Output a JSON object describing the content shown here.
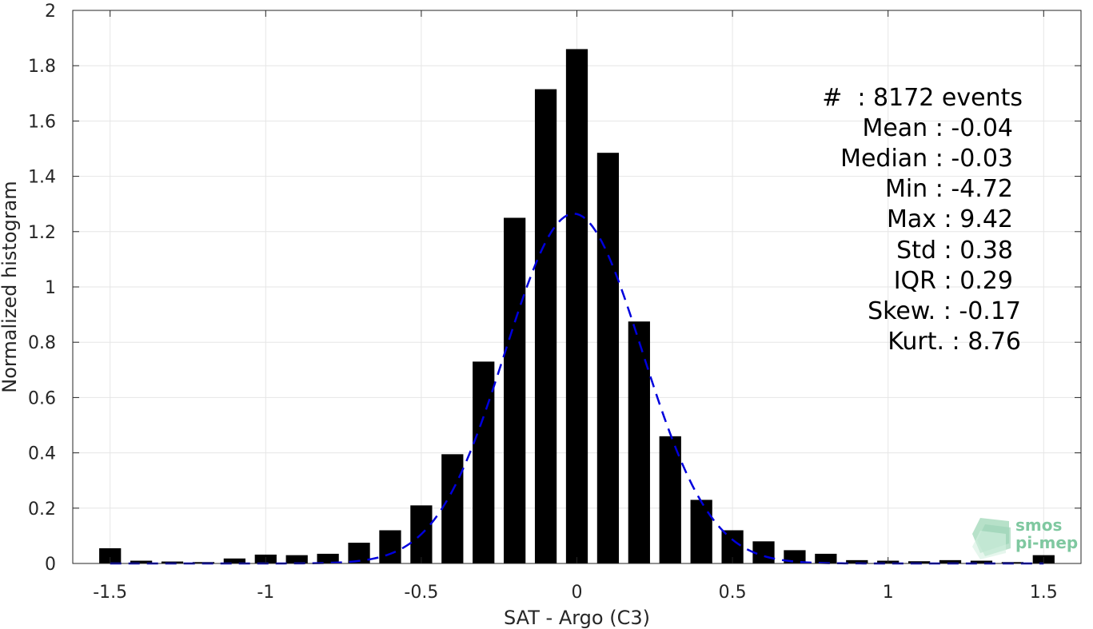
{
  "chart_data": {
    "type": "bar",
    "xlabel": "SAT - Argo (C3)",
    "ylabel": "Normalized histogram",
    "xlim": [
      -1.62,
      1.62
    ],
    "ylim": [
      0,
      2
    ],
    "xticks": [
      -1.5,
      -1,
      -0.5,
      0,
      0.5,
      1,
      1.5
    ],
    "xtick_labels": [
      "-1.5",
      "-1",
      "-0.5",
      "0",
      "0.5",
      "1",
      "1.5"
    ],
    "yticks": [
      0,
      0.2,
      0.4,
      0.6,
      0.8,
      1,
      1.2,
      1.4,
      1.6,
      1.8,
      2
    ],
    "ytick_labels": [
      "0",
      "0.2",
      "0.4",
      "0.6",
      "0.8",
      "1",
      "1.2",
      "1.4",
      "1.6",
      "1.8",
      "2"
    ],
    "grid": true,
    "bar_width": 0.07,
    "bars": {
      "x": [
        -1.5,
        -1.4,
        -1.3,
        -1.2,
        -1.1,
        -1.0,
        -0.9,
        -0.8,
        -0.7,
        -0.6,
        -0.5,
        -0.4,
        -0.3,
        -0.2,
        -0.1,
        0.0,
        0.1,
        0.2,
        0.3,
        0.4,
        0.5,
        0.6,
        0.7,
        0.8,
        0.9,
        1.0,
        1.1,
        1.2,
        1.3,
        1.4,
        1.5
      ],
      "values": [
        0.055,
        0.01,
        0.007,
        0.005,
        0.018,
        0.032,
        0.03,
        0.035,
        0.075,
        0.12,
        0.21,
        0.395,
        0.73,
        1.25,
        1.715,
        1.86,
        1.485,
        0.875,
        0.46,
        0.23,
        0.12,
        0.08,
        0.048,
        0.035,
        0.012,
        0.01,
        0.008,
        0.012,
        0.01,
        0.005,
        0.03
      ],
      "color": "#000000"
    },
    "fit_curve": {
      "style": "dashed",
      "color": "#0000dd",
      "mean": -0.01,
      "amplitude": 1.265,
      "sigma": 0.22,
      "x_range": [
        -1.5,
        1.5
      ]
    },
    "annotations": [
      "#  : 8172 events",
      "Mean : -0.04",
      "Median : -0.03",
      "Min : -4.72",
      "Max : 9.42",
      "Std : 0.38",
      "IQR : 0.29",
      "Skew. : -0.17",
      "Kurt. : 8.76"
    ]
  },
  "logo": {
    "line1": "smos",
    "line2": "pi-mep",
    "color": "#7fc8a0"
  }
}
